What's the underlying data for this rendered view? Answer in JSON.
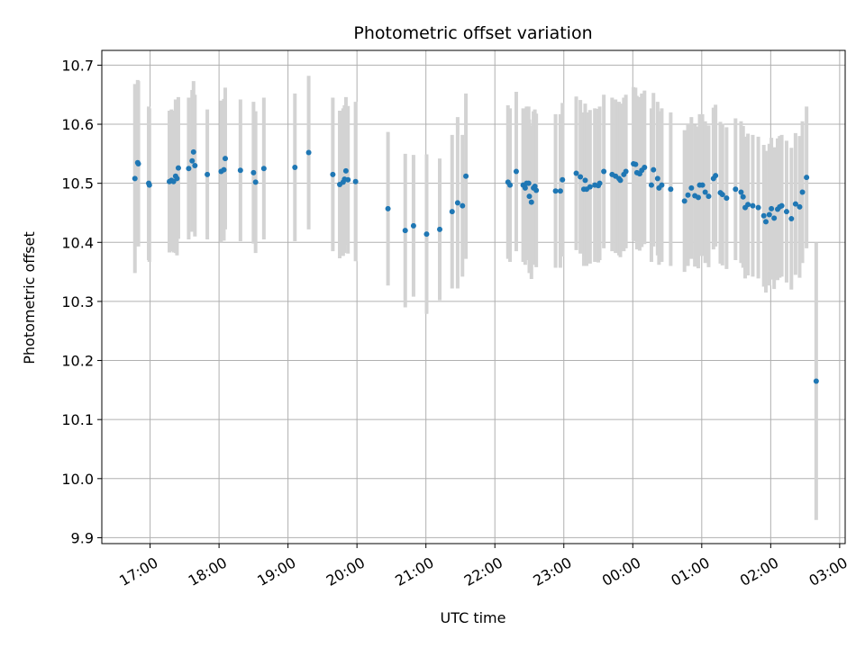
{
  "chart_data": {
    "type": "scatter",
    "title": "Photometric offset variation",
    "xlabel": "UTC time",
    "ylabel": "Photometric offset",
    "x_unit": "hours since 17:00 UTC",
    "xlim": [
      -0.7,
      10.08
    ],
    "ylim": [
      9.89,
      10.725
    ],
    "grid": true,
    "legend": "none",
    "x_ticks": [
      {
        "label": "17:00",
        "value": 0
      },
      {
        "label": "18:00",
        "value": 1
      },
      {
        "label": "19:00",
        "value": 2
      },
      {
        "label": "20:00",
        "value": 3
      },
      {
        "label": "21:00",
        "value": 4
      },
      {
        "label": "22:00",
        "value": 5
      },
      {
        "label": "23:00",
        "value": 6
      },
      {
        "label": "00:00",
        "value": 7
      },
      {
        "label": "01:00",
        "value": 8
      },
      {
        "label": "02:00",
        "value": 9
      },
      {
        "label": "03:00",
        "value": 10
      }
    ],
    "y_ticks": [
      {
        "label": "9.9",
        "value": 9.9
      },
      {
        "label": "10.0",
        "value": 10.0
      },
      {
        "label": "10.1",
        "value": 10.1
      },
      {
        "label": "10.2",
        "value": 10.2
      },
      {
        "label": "10.3",
        "value": 10.3
      },
      {
        "label": "10.4",
        "value": 10.4
      },
      {
        "label": "10.5",
        "value": 10.5
      },
      {
        "label": "10.6",
        "value": 10.6
      },
      {
        "label": "10.7",
        "value": 10.7
      }
    ],
    "marker_color": "#1f77b4",
    "errorbar_color": "#d3d3d3",
    "points": [
      [
        -0.22,
        10.508,
        0.16
      ],
      [
        -0.18,
        10.535,
        0.14
      ],
      [
        -0.17,
        10.533,
        0.14
      ],
      [
        -0.02,
        10.5,
        0.13
      ],
      [
        -0.01,
        10.497,
        0.13
      ],
      [
        0.28,
        10.503,
        0.12
      ],
      [
        0.31,
        10.505,
        0.12
      ],
      [
        0.34,
        10.503,
        0.12
      ],
      [
        0.37,
        10.512,
        0.13
      ],
      [
        0.39,
        10.508,
        0.13
      ],
      [
        0.41,
        10.526,
        0.12
      ],
      [
        0.56,
        10.525,
        0.12
      ],
      [
        0.61,
        10.538,
        0.12
      ],
      [
        0.63,
        10.553,
        0.12
      ],
      [
        0.65,
        10.53,
        0.12
      ],
      [
        0.83,
        10.515,
        0.11
      ],
      [
        1.03,
        10.52,
        0.12
      ],
      [
        1.07,
        10.523,
        0.12
      ],
      [
        1.09,
        10.542,
        0.12
      ],
      [
        1.31,
        10.522,
        0.12
      ],
      [
        1.5,
        10.518,
        0.12
      ],
      [
        1.53,
        10.502,
        0.12
      ],
      [
        1.65,
        10.525,
        0.12
      ],
      [
        2.1,
        10.527,
        0.125
      ],
      [
        2.3,
        10.552,
        0.13
      ],
      [
        2.65,
        10.515,
        0.13
      ],
      [
        2.75,
        10.498,
        0.125
      ],
      [
        2.8,
        10.502,
        0.125
      ],
      [
        2.82,
        10.507,
        0.125
      ],
      [
        2.84,
        10.521,
        0.125
      ],
      [
        2.87,
        10.506,
        0.125
      ],
      [
        2.98,
        10.503,
        0.135
      ],
      [
        3.45,
        10.457,
        0.13
      ],
      [
        3.7,
        10.42,
        0.13
      ],
      [
        3.82,
        10.428,
        0.12
      ],
      [
        4.01,
        10.414,
        0.135
      ],
      [
        4.2,
        10.422,
        0.12
      ],
      [
        4.38,
        10.452,
        0.13
      ],
      [
        4.46,
        10.467,
        0.145
      ],
      [
        4.53,
        10.462,
        0.12
      ],
      [
        4.58,
        10.512,
        0.14
      ],
      [
        5.19,
        10.502,
        0.13
      ],
      [
        5.22,
        10.497,
        0.13
      ],
      [
        5.31,
        10.52,
        0.135
      ],
      [
        5.41,
        10.497,
        0.13
      ],
      [
        5.44,
        10.492,
        0.13
      ],
      [
        5.46,
        10.5,
        0.13
      ],
      [
        5.49,
        10.5,
        0.13
      ],
      [
        5.5,
        10.478,
        0.13
      ],
      [
        5.53,
        10.468,
        0.13
      ],
      [
        5.56,
        10.492,
        0.13
      ],
      [
        5.58,
        10.495,
        0.13
      ],
      [
        5.6,
        10.488,
        0.13
      ],
      [
        5.88,
        10.487,
        0.13
      ],
      [
        5.95,
        10.487,
        0.13
      ],
      [
        5.98,
        10.506,
        0.13
      ],
      [
        6.18,
        10.517,
        0.13
      ],
      [
        6.24,
        10.511,
        0.13
      ],
      [
        6.29,
        10.49,
        0.13
      ],
      [
        6.31,
        10.505,
        0.13
      ],
      [
        6.33,
        10.49,
        0.13
      ],
      [
        6.38,
        10.494,
        0.13
      ],
      [
        6.45,
        10.497,
        0.13
      ],
      [
        6.5,
        10.496,
        0.13
      ],
      [
        6.52,
        10.5,
        0.13
      ],
      [
        6.58,
        10.52,
        0.13
      ],
      [
        6.7,
        10.515,
        0.13
      ],
      [
        6.75,
        10.512,
        0.13
      ],
      [
        6.8,
        10.508,
        0.13
      ],
      [
        6.82,
        10.505,
        0.13
      ],
      [
        6.87,
        10.515,
        0.13
      ],
      [
        6.9,
        10.52,
        0.13
      ],
      [
        7.01,
        10.533,
        0.13
      ],
      [
        7.04,
        10.532,
        0.13
      ],
      [
        7.06,
        10.518,
        0.13
      ],
      [
        7.1,
        10.516,
        0.13
      ],
      [
        7.13,
        10.522,
        0.13
      ],
      [
        7.17,
        10.527,
        0.13
      ],
      [
        7.27,
        10.497,
        0.13
      ],
      [
        7.3,
        10.523,
        0.13
      ],
      [
        7.36,
        10.508,
        0.13
      ],
      [
        7.38,
        10.492,
        0.13
      ],
      [
        7.42,
        10.497,
        0.13
      ],
      [
        7.55,
        10.49,
        0.13
      ],
      [
        7.75,
        10.47,
        0.12
      ],
      [
        7.8,
        10.48,
        0.12
      ],
      [
        7.85,
        10.492,
        0.12
      ],
      [
        7.9,
        10.479,
        0.12
      ],
      [
        7.95,
        10.476,
        0.12
      ],
      [
        7.97,
        10.497,
        0.12
      ],
      [
        8.01,
        10.497,
        0.12
      ],
      [
        8.05,
        10.485,
        0.12
      ],
      [
        8.1,
        10.478,
        0.12
      ],
      [
        8.17,
        10.508,
        0.12
      ],
      [
        8.2,
        10.513,
        0.12
      ],
      [
        8.27,
        10.484,
        0.12
      ],
      [
        8.3,
        10.481,
        0.12
      ],
      [
        8.36,
        10.475,
        0.12
      ],
      [
        8.49,
        10.49,
        0.12
      ],
      [
        8.57,
        10.485,
        0.12
      ],
      [
        8.6,
        10.477,
        0.12
      ],
      [
        8.63,
        10.459,
        0.12
      ],
      [
        8.67,
        10.464,
        0.12
      ],
      [
        8.74,
        10.462,
        0.12
      ],
      [
        8.82,
        10.459,
        0.12
      ],
      [
        8.9,
        10.445,
        0.12
      ],
      [
        8.93,
        10.435,
        0.12
      ],
      [
        8.98,
        10.447,
        0.12
      ],
      [
        9.01,
        10.457,
        0.12
      ],
      [
        9.05,
        10.441,
        0.12
      ],
      [
        9.1,
        10.456,
        0.12
      ],
      [
        9.13,
        10.46,
        0.12
      ],
      [
        9.16,
        10.462,
        0.12
      ],
      [
        9.23,
        10.452,
        0.12
      ],
      [
        9.3,
        10.44,
        0.12
      ],
      [
        9.36,
        10.465,
        0.12
      ],
      [
        9.42,
        10.46,
        0.12
      ],
      [
        9.46,
        10.485,
        0.12
      ],
      [
        9.52,
        10.51,
        0.12
      ],
      [
        9.66,
        10.165,
        0.235
      ]
    ]
  }
}
